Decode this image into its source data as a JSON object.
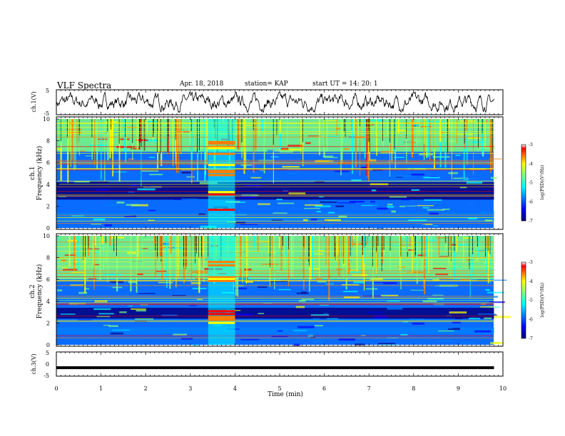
{
  "header": {
    "title": "VLF Spectra",
    "date": "Apr. 18, 2018",
    "station": "station= KAP",
    "start": "start  UT =   14: 20: 1"
  },
  "chart_data": [
    {
      "type": "line",
      "panel": "ch1-waveform",
      "ylabel": "ch.1(V)",
      "ylim": [
        -5,
        5
      ],
      "y_ticks": [
        "5",
        "-5"
      ],
      "xlim": [
        0,
        10
      ],
      "x_ticks": [],
      "series": [
        {
          "x": [
            0,
            9.8
          ],
          "y": [
            0,
            0
          ]
        }
      ]
    },
    {
      "type": "heatmap",
      "panel": "ch1-spectrogram",
      "ylabel": "ch.1\nFrequency (kHz)",
      "ylim": [
        0,
        10
      ],
      "y_ticks": [
        "0",
        "2",
        "4",
        "6",
        "8",
        "10"
      ],
      "xlim": [
        0,
        10
      ],
      "x_ticks": [],
      "colorbar": {
        "label": "log(PSD)(V²/Hz)",
        "ticks": [
          "-3",
          "-4",
          "-5",
          "-6",
          "-7"
        ],
        "range": [
          -7,
          -3
        ]
      },
      "colormap": [
        "#00007f",
        "#0000ff",
        "#007fff",
        "#00ffff",
        "#7fff7f",
        "#ffff00",
        "#ff7f00",
        "#ff0000",
        "#ffffff"
      ],
      "feature_bands": [
        {
          "freq_khz": [
            2.6,
            4.2
          ],
          "level": -6.8
        },
        {
          "freq_khz": [
            0.6,
            1.4
          ],
          "level": -5.8
        },
        {
          "freq_khz": [
            7.0,
            10.0
          ],
          "level": -5.0
        }
      ],
      "burst_time_min": [
        3.4,
        4.0
      ]
    },
    {
      "type": "heatmap",
      "panel": "ch2-spectrogram",
      "ylabel": "ch.2\nFrequency (kHz)",
      "ylim": [
        0,
        10
      ],
      "y_ticks": [
        "0",
        "2",
        "4",
        "6",
        "8",
        "10"
      ],
      "xlim": [
        0,
        10
      ],
      "x_ticks": [],
      "colorbar": {
        "label": "log(PSD)(V²/Hz)",
        "ticks": [
          "-3",
          "-4",
          "-5",
          "-6",
          "-7"
        ],
        "range": [
          -7,
          -3
        ]
      },
      "colormap": [
        "#00007f",
        "#0000ff",
        "#007fff",
        "#00ffff",
        "#7fff7f",
        "#ffff00",
        "#ff7f00",
        "#ff0000",
        "#ffffff"
      ],
      "feature_bands": [
        {
          "freq_khz": [
            2.4,
            3.4
          ],
          "level": -6.8
        },
        {
          "freq_khz": [
            1.0,
            1.6
          ],
          "level": -6.0
        },
        {
          "freq_khz": [
            6.0,
            10.0
          ],
          "level": -5.0
        }
      ],
      "burst_time_min": [
        3.4,
        4.0
      ]
    },
    {
      "type": "line",
      "panel": "ch3-waveform",
      "ylabel": "ch.3(V)",
      "ylim": [
        -5,
        5
      ],
      "y_ticks": [
        "5",
        "0",
        "-5"
      ],
      "xlim": [
        0,
        10
      ],
      "x_ticks": [
        "0",
        "1",
        "2",
        "3",
        "4",
        "5",
        "6",
        "7",
        "8",
        "9",
        "10"
      ],
      "xlabel": "Time (min)",
      "series": [
        {
          "x": [
            0,
            9.8
          ],
          "y": [
            -1.5,
            -1.5
          ]
        }
      ]
    }
  ]
}
